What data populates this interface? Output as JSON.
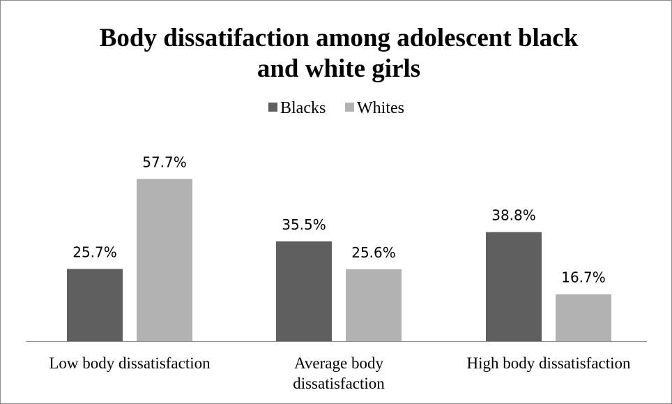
{
  "chart_data": {
    "type": "bar",
    "title": "Body dissatifaction among adolescent black and white girls",
    "title_lines": [
      "Body dissatifaction among adolescent black",
      "and white girls"
    ],
    "categories": [
      "Low body dissatisfaction",
      "Average body dissatisfaction",
      "High body dissatisfaction"
    ],
    "category_lines": [
      [
        "Low body dissatisfaction"
      ],
      [
        "Average body",
        "dissatisfaction"
      ],
      [
        "High body dissatisfaction"
      ]
    ],
    "series": [
      {
        "name": "Blacks",
        "values": [
          25.7,
          35.5,
          38.8
        ],
        "labels": [
          "25.7%",
          "35.5%",
          "38.8%"
        ],
        "color": "#5f5f5f"
      },
      {
        "name": "Whites",
        "values": [
          57.7,
          25.6,
          16.7
        ],
        "labels": [
          "57.7%",
          "25.6%",
          "16.7%"
        ],
        "color": "#b2b2b2"
      }
    ],
    "ylim": [
      0,
      70
    ],
    "grid": false,
    "legend_position": "top",
    "xlabel": "",
    "ylabel": ""
  }
}
